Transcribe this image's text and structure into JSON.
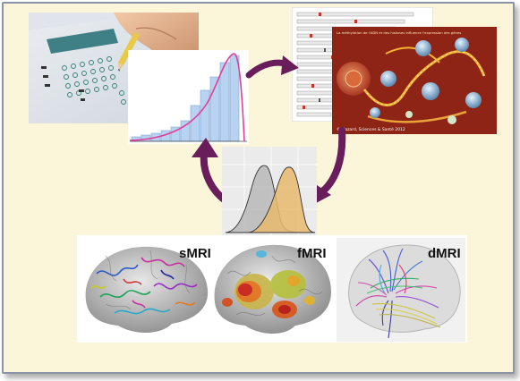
{
  "panels": {
    "questionnaire": {
      "kind": "photo"
    },
    "histogram": {
      "kind": "chart"
    },
    "genome": {
      "kind": "illustration",
      "caption_title": "La méthylation de l'ADN et des histones influence l'expression des gènes",
      "credit": "© Hazard, Sciences & Santé 2012"
    },
    "density": {
      "kind": "chart"
    },
    "smri": {
      "label": "sMRI"
    },
    "fmri": {
      "label": "fMRI"
    },
    "dmri": {
      "label": "dMRI"
    }
  },
  "colors": {
    "background": "#fbf5da",
    "border": "#8a94a6",
    "arrow": "#6a1d5b",
    "curve": "#e23e9a",
    "bars": "#b8d3f1",
    "density_grey": "#b9b9b9",
    "density_orange": "#e8b96d"
  }
}
